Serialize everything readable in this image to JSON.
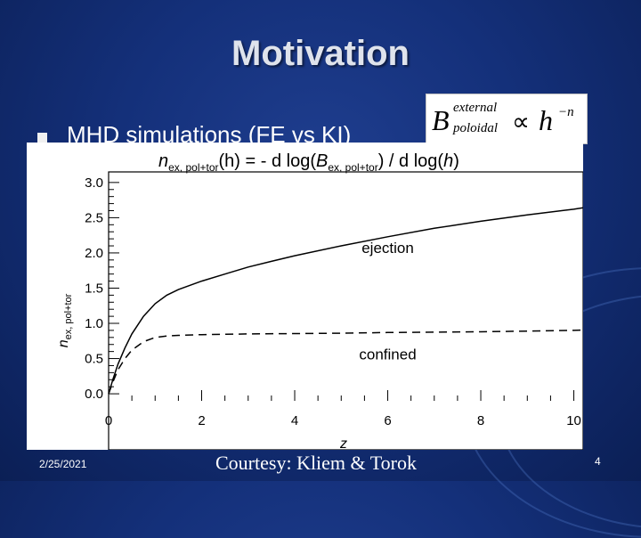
{
  "slide": {
    "title": "Motivation",
    "bullet": "MHD simulations (FE vs KI)",
    "footer_date": "2/25/2021",
    "footer_credit": "Courtesy: Kliem & Torok",
    "slide_number": "4",
    "background_color": "#14307a",
    "formula": {
      "B": "B",
      "sup": "external",
      "sub": "poloidal",
      "prop": "∝",
      "h": "h",
      "exp": "−n"
    }
  },
  "chart_data": {
    "type": "line",
    "title_parts": {
      "n": "n",
      "n_sub": "ex, pol+tor",
      "mid1": "(h) = - d log(",
      "B": "B",
      "B_sub": "ex, pol+tor",
      "mid2": ") / d log(",
      "h": "h",
      "end": ")"
    },
    "xlabel": "z",
    "ylabel": "n",
    "ylabel_sub": "ex, pol+tor",
    "xlim": [
      0,
      10.2
    ],
    "ylim": [
      -0.1,
      3.15
    ],
    "xticks": [
      0,
      2,
      4,
      6,
      8,
      10
    ],
    "yticks": [
      0.0,
      0.5,
      1.0,
      1.5,
      2.0,
      2.5,
      3.0
    ],
    "xtick_labels": [
      "0",
      "2",
      "4",
      "6",
      "8",
      "10"
    ],
    "ytick_labels": [
      "0.0",
      "0.5",
      "1.0",
      "1.5",
      "2.0",
      "2.5",
      "3.0"
    ],
    "series": [
      {
        "name": "ejection",
        "style": "solid",
        "x": [
          0,
          0.1,
          0.2,
          0.35,
          0.5,
          0.75,
          1.0,
          1.25,
          1.5,
          2.0,
          2.5,
          3.0,
          3.5,
          4.0,
          5.0,
          6.0,
          7.0,
          8.0,
          9.0,
          10.0,
          10.2
        ],
        "y": [
          0.0,
          0.22,
          0.42,
          0.65,
          0.85,
          1.1,
          1.28,
          1.4,
          1.48,
          1.6,
          1.7,
          1.8,
          1.88,
          1.96,
          2.1,
          2.23,
          2.35,
          2.45,
          2.54,
          2.62,
          2.64
        ]
      },
      {
        "name": "confined",
        "style": "dashed",
        "x": [
          0,
          0.1,
          0.2,
          0.35,
          0.5,
          0.75,
          1.0,
          1.25,
          1.5,
          2.0,
          3.0,
          4.0,
          5.0,
          6.0,
          7.0,
          8.0,
          9.0,
          10.0,
          10.2
        ],
        "y": [
          0.0,
          0.18,
          0.34,
          0.5,
          0.62,
          0.74,
          0.8,
          0.82,
          0.83,
          0.84,
          0.85,
          0.855,
          0.86,
          0.87,
          0.875,
          0.88,
          0.89,
          0.9,
          0.905
        ]
      }
    ],
    "grid": false
  }
}
